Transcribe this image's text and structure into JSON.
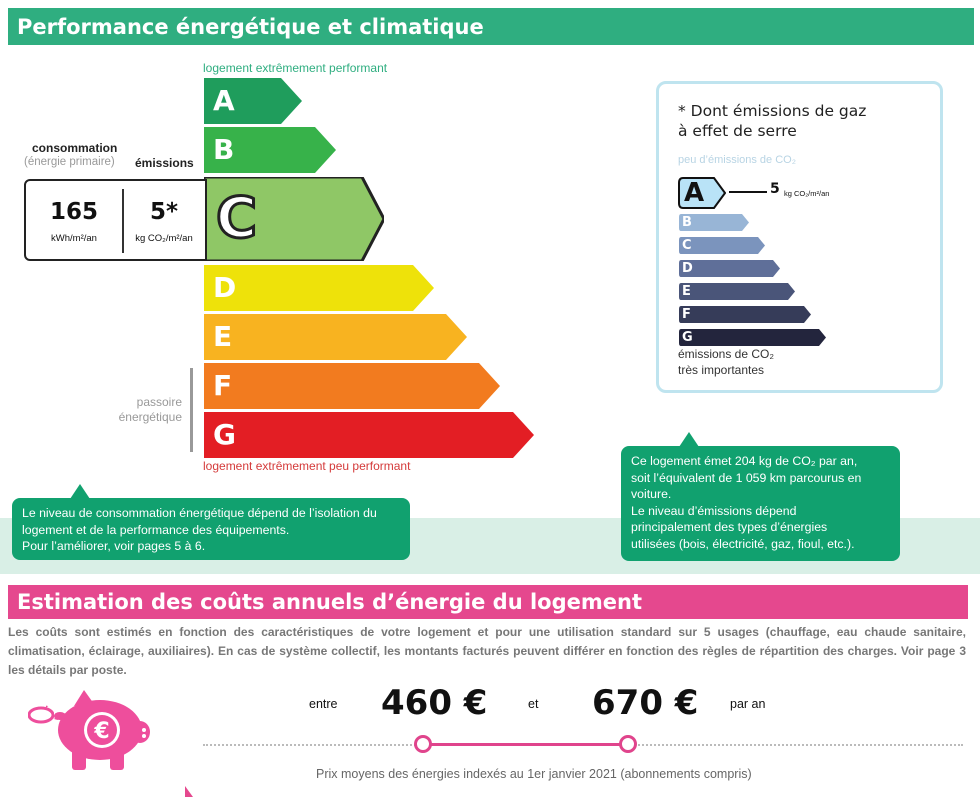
{
  "energy_section": {
    "title": "Performance énergétique et climatique",
    "top_label": "logement extrêmement performant",
    "bottom_label": "logement extrêmement peu performant",
    "classes": [
      {
        "letter": "A",
        "color": "#1f9d5c"
      },
      {
        "letter": "B",
        "color": "#37b24a"
      },
      {
        "letter": "C",
        "color": "#8fc766",
        "selected": true
      },
      {
        "letter": "D",
        "color": "#eee20a"
      },
      {
        "letter": "E",
        "color": "#f8b320"
      },
      {
        "letter": "F",
        "color": "#f27b1f"
      },
      {
        "letter": "G",
        "color": "#e31e24"
      }
    ],
    "consumption_label": "consommation",
    "consumption_sub": "(énergie primaire)",
    "emissions_label": "émissions",
    "consumption_value": "165",
    "consumption_unit": "kWh/m²/an",
    "emissions_value": "5*",
    "emissions_unit": "kg CO₂/m²/an",
    "passoire_line1": "passoire",
    "passoire_line2": "énergétique",
    "bubble_left": [
      "Le niveau de consommation énergétique dépend de l’isolation du",
      "logement et de la performance des équipements.",
      "Pour l’améliorer, voir pages 5 à 6."
    ]
  },
  "ges_card": {
    "title_line1": "* Dont émissions de gaz",
    "title_line2": "à effet de serre",
    "top_label": "peu d’émissions de CO₂",
    "selected_value": "5",
    "selected_unit": "kg CO₂/m²/an",
    "classes": [
      {
        "letter": "A",
        "color": "#b9e3f7"
      },
      {
        "letter": "B",
        "color": "#98b5d6"
      },
      {
        "letter": "C",
        "color": "#7b94bd"
      },
      {
        "letter": "D",
        "color": "#5f6f99"
      },
      {
        "letter": "E",
        "color": "#4a5579"
      },
      {
        "letter": "F",
        "color": "#363c59"
      },
      {
        "letter": "G",
        "color": "#23253d"
      }
    ],
    "bottom_label_line1": "émissions de CO₂",
    "bottom_label_line2": "très importantes"
  },
  "bubble_right": [
    "Ce logement émet 204 kg de CO₂ par an,",
    "soit l’équivalent de 1 059 km parcourus en",
    "voiture.",
    "Le niveau d’émissions dépend",
    "principalement des types d’énergies",
    "utilisées (bois, électricité, gaz, fioul, etc.)."
  ],
  "cost_section": {
    "title": "Estimation des coûts annuels d’énergie du logement",
    "description": "Les coûts sont estimés en fonction des caractéristiques de votre logement et pour une utilisation standard sur 5 usages (chauffage, eau chaude sanitaire, climatisation, éclairage, auxiliaires). En cas de système collectif, les montants facturés peuvent différer en fonction des règles de répartition des charges. Voir page 3 les détails par poste.",
    "word_between": "entre",
    "low_value": "460 €",
    "word_and": "et",
    "high_value": "670 €",
    "word_per_year": "par an",
    "prices_note": "Prix moyens des énergies indexés au 1er janvier 2021 (abonnements compris)",
    "piggy_icon": "piggy-bank-euro-icon"
  }
}
